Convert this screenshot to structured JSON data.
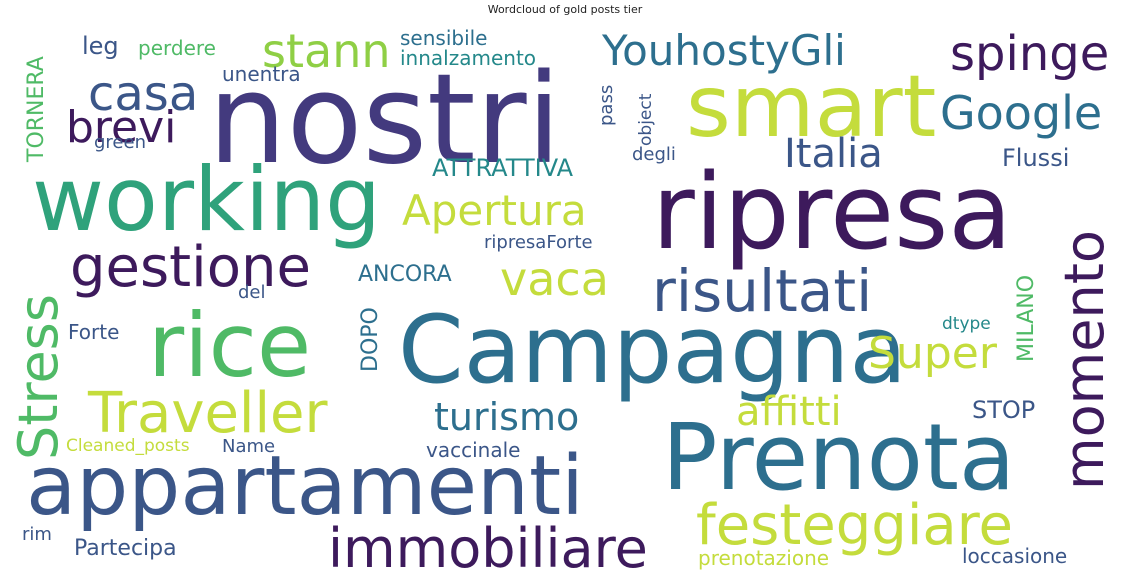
{
  "title": "Wordcloud of gold posts tier",
  "palette": {
    "deep_purple": "#3d1a5c",
    "indigo": "#433a7e",
    "slate_blue": "#3b5688",
    "teal_blue": "#2d6f8e",
    "teal": "#24888a",
    "green_teal": "#2fa27b",
    "green": "#4fba66",
    "lime": "#8fcf45",
    "yellow_green": "#c4dc3c"
  },
  "words": {
    "nostri": "nostri",
    "smart": "smart",
    "ripresa": "ripresa",
    "working": "working",
    "campagna": "Campagna",
    "rice": "rice",
    "prenota": "Prenota",
    "appartamenti": "appartamenti",
    "traveller": "Traveller",
    "stress": "Stress",
    "momento": "momento",
    "immobiliare": "immobiliare",
    "festeggiare": "festeggiare",
    "risultati": "risultati",
    "gestione": "gestione",
    "casa": "casa",
    "youhostygli": "YouhostyGli",
    "spinge": "spinge",
    "stann": "stann",
    "google": "Google",
    "brevi": "brevi",
    "italia": "Italia",
    "apertura": "Apertura",
    "vaca": "vaca",
    "super": "Super",
    "turismo": "turismo",
    "affitti": "affitti",
    "partecipa": "Partecipa",
    "vaccinale": "vaccinale",
    "prenotazione": "prenotazione",
    "loccasione": "loccasione",
    "sensibile": "sensibile",
    "innalzamento": "innalzamento",
    "leg": "leg",
    "perdere": "perdere",
    "unentra": "unentra",
    "green": "green",
    "tornera": "TORNERA",
    "pass": "pass",
    "object": "object",
    "degli": "degli",
    "attrattiva": "ATTRATTIVA",
    "flussi": "Flussi",
    "ripresaforte": "ripresaForte",
    "ancora": "ANCORA",
    "del": "del",
    "dopo": "DOPO",
    "milano": "MILANO",
    "forte": "Forte",
    "dtype": "dtype",
    "stop": "STOP",
    "cleaned_posts": "Cleaned_posts",
    "name": "Name",
    "rim": "rim"
  }
}
